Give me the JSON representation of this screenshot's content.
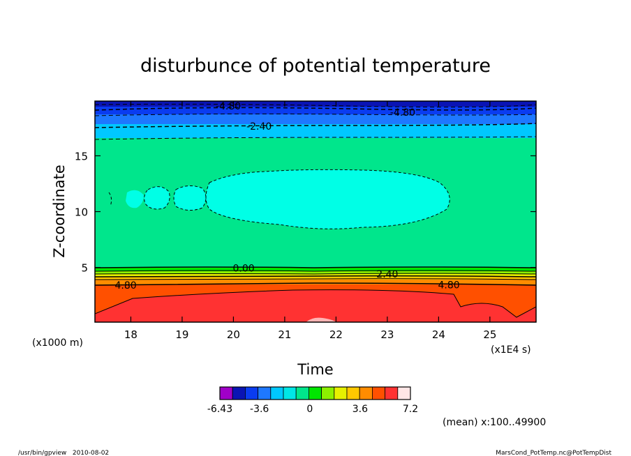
{
  "chart_data": {
    "type": "heatmap",
    "title": "disturbunce of potential temperature",
    "xlabel": "Time",
    "ylabel": "Z-coordinate",
    "x_unit": "(x1E4 s)",
    "y_unit": "(x1000 m)",
    "xlim": [
      17.3,
      25.9
    ],
    "ylim": [
      0.1,
      19.9
    ],
    "x_ticks": [
      "18",
      "19",
      "20",
      "21",
      "22",
      "23",
      "24",
      "25"
    ],
    "y_ticks": [
      "5",
      "10",
      "15"
    ],
    "contour_labels": [
      {
        "text": "-4.80",
        "x": 19.9,
        "y": 19.45
      },
      {
        "text": "-4.80",
        "x": 23.3,
        "y": 18.9
      },
      {
        "text": "-2.40",
        "x": 20.5,
        "y": 17.65
      },
      {
        "text": "0.00",
        "x": 20.2,
        "y": 4.95
      },
      {
        "text": "2.40",
        "x": 23.0,
        "y": 4.4
      },
      {
        "text": "4.80",
        "x": 17.9,
        "y": 3.4
      },
      {
        "text": "4.80",
        "x": 24.2,
        "y": 3.45
      }
    ],
    "colorbar": {
      "ticks": [
        "-6.43",
        "-3.6",
        "0",
        "3.6",
        "7.2"
      ],
      "colors": [
        "#a000c8",
        "#0a14b4",
        "#0a3cf0",
        "#1e78ff",
        "#00c8ff",
        "#00e6e6",
        "#00e68c",
        "#00e600",
        "#8cf000",
        "#e6f000",
        "#ffc800",
        "#ff8c00",
        "#ff5000",
        "#ff3232",
        "#ffe6e6"
      ]
    },
    "levels": {
      "band_top": "#0a14b4",
      "band_2": "#0a3cf0",
      "band_3": "#1e78ff",
      "band_4": "#00c8ff",
      "main": "#00e68c",
      "blob": "#00ffe6",
      "low_1": "#00e600",
      "low_2": "#8cf000",
      "low_3": "#e6f000",
      "low_4": "#ffc800",
      "low_5": "#ff8c00",
      "low_6": "#ff5000",
      "low_7": "#ff3232",
      "peak": "#ffb4b4"
    }
  },
  "annotation": {
    "mean": "(mean) x:100..49900"
  },
  "footer": {
    "left": "/usr/bin/gpview   2010-08-02",
    "right": "MarsCond_PotTemp.nc@PotTempDist"
  }
}
